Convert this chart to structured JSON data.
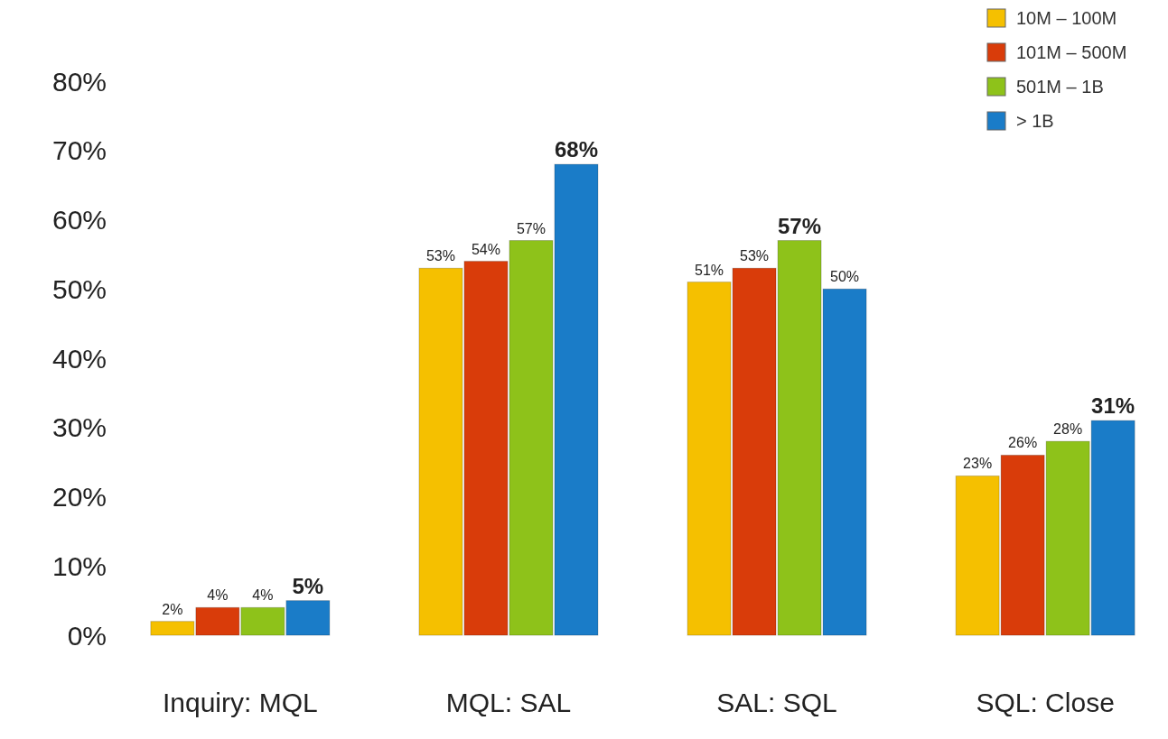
{
  "chart_data": {
    "type": "bar",
    "categories": [
      "Inquiry: MQL",
      "MQL: SAL",
      "SAL: SQL",
      "SQL: Close"
    ],
    "series": [
      {
        "name": "10M – 100M",
        "color": "#f5c000",
        "values": [
          2,
          53,
          51,
          23
        ]
      },
      {
        "name": "101M – 500M",
        "color": "#d93c0a",
        "values": [
          4,
          54,
          53,
          26
        ]
      },
      {
        "name": "501M – 1B",
        "color": "#8ec21a",
        "values": [
          4,
          57,
          57,
          28
        ]
      },
      {
        "name": "> 1B",
        "color": "#1a7cc8",
        "values": [
          5,
          68,
          50,
          31
        ]
      }
    ],
    "ylim": [
      0,
      80
    ],
    "yticks": [
      {
        "value": 0,
        "label": "0%"
      },
      {
        "value": 10,
        "label": "10%"
      },
      {
        "value": 20,
        "label": "20%"
      },
      {
        "value": 30,
        "label": "30%"
      },
      {
        "value": 40,
        "label": "40%"
      },
      {
        "value": 50,
        "label": "50%"
      },
      {
        "value": 60,
        "label": "60%"
      },
      {
        "value": 70,
        "label": "70%"
      },
      {
        "value": 80,
        "label": "80%"
      }
    ],
    "value_labels": [
      [
        "2%",
        "53%",
        "51%",
        "23%"
      ],
      [
        "4%",
        "54%",
        "53%",
        "26%"
      ],
      [
        "4%",
        "57%",
        "57%",
        "28%"
      ],
      [
        "5%",
        "68%",
        "50%",
        "31%"
      ]
    ],
    "legend": "top right",
    "grid": false
  }
}
